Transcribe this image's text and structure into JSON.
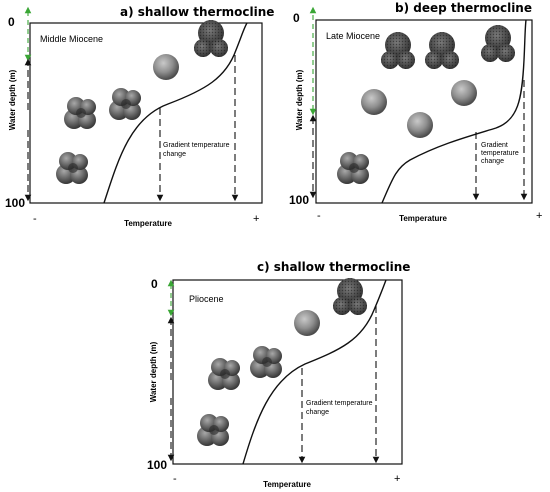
{
  "panels": [
    {
      "id": "a",
      "title": "a) shallow thermocline",
      "period": "Middle Miocene",
      "ylabel": "Water depth (m)",
      "xlabel": "Temperature",
      "depth_top": "0",
      "depth_bottom": "100",
      "temp_min": "-",
      "temp_max": "+",
      "annotation": [
        "Gradient temperature",
        "change"
      ]
    },
    {
      "id": "b",
      "title": "b) deep thermocline",
      "period": "Late Miocene",
      "ylabel": "Water depth (m)",
      "xlabel": "Temperature",
      "depth_top": "0",
      "depth_bottom": "100",
      "temp_min": "-",
      "temp_max": "+",
      "annotation": [
        "Gradient",
        "temperature",
        "change"
      ]
    },
    {
      "id": "c",
      "title": "c) shallow thermocline",
      "period": "Pliocene",
      "ylabel": "Water depth (m)",
      "xlabel": "Temperature",
      "depth_top": "0",
      "depth_bottom": "100",
      "temp_min": "-",
      "temp_max": "+",
      "annotation": [
        "Gradient temperature",
        "change"
      ]
    }
  ],
  "colors": {
    "line": "#111111",
    "arrow_green": "#3aa635",
    "fossil_dark": "#3d3d3d",
    "fossil_light": "#8a8a8a"
  }
}
